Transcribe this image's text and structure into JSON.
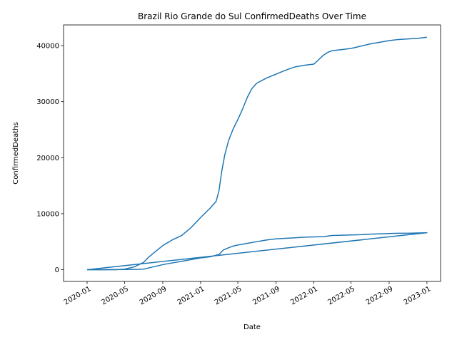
{
  "chart_data": {
    "type": "line",
    "title": "Brazil Rio Grande do Sul ConfirmedDeaths Over Time",
    "xlabel": "Date",
    "ylabel": "ConfirmedDeaths",
    "x_axis_type": "date",
    "xlim": [
      "2019-10-17",
      "2023-02-14"
    ],
    "ylim": [
      -2100,
      43700
    ],
    "x_ticks": [
      "2020-01-01",
      "2020-05-01",
      "2020-09-01",
      "2021-01-01",
      "2021-05-01",
      "2021-09-01",
      "2022-01-01",
      "2022-05-01",
      "2022-09-01",
      "2023-01-01"
    ],
    "x_tick_labels": [
      "2020-01",
      "2020-05",
      "2020-09",
      "2021-01",
      "2021-05",
      "2021-09",
      "2022-01",
      "2022-05",
      "2022-09",
      "2023-01"
    ],
    "y_ticks": [
      0,
      10000,
      20000,
      30000,
      40000
    ],
    "y_tick_labels": [
      "0",
      "10000",
      "20000",
      "30000",
      "40000"
    ],
    "grid": false,
    "line_color": "#1f77b4",
    "series": [
      {
        "points": [
          [
            "2020-01-01",
            0
          ],
          [
            "2020-02-15",
            0
          ],
          [
            "2020-04-01",
            0
          ],
          [
            "2020-05-01",
            100
          ],
          [
            "2020-06-01",
            500
          ],
          [
            "2020-07-01",
            1300
          ],
          [
            "2020-07-15",
            2100
          ],
          [
            "2020-08-01",
            2900
          ],
          [
            "2020-09-01",
            4300
          ],
          [
            "2020-10-01",
            5300
          ],
          [
            "2020-11-01",
            6100
          ],
          [
            "2020-12-01",
            7500
          ],
          [
            "2021-01-01",
            9300
          ],
          [
            "2021-02-01",
            11000
          ],
          [
            "2021-02-20",
            12200
          ],
          [
            "2021-03-01",
            14000
          ],
          [
            "2021-03-10",
            17500
          ],
          [
            "2021-03-20",
            20500
          ],
          [
            "2021-04-01",
            23000
          ],
          [
            "2021-04-15",
            25000
          ],
          [
            "2021-05-01",
            26800
          ],
          [
            "2021-05-15",
            28500
          ],
          [
            "2021-06-01",
            30800
          ],
          [
            "2021-06-15",
            32300
          ],
          [
            "2021-07-01",
            33300
          ],
          [
            "2021-08-01",
            34200
          ],
          [
            "2021-09-01",
            34900
          ],
          [
            "2021-10-01",
            35600
          ],
          [
            "2021-11-01",
            36200
          ],
          [
            "2021-12-01",
            36500
          ],
          [
            "2022-01-01",
            36700
          ],
          [
            "2022-01-15",
            37400
          ],
          [
            "2022-02-01",
            38300
          ],
          [
            "2022-02-15",
            38800
          ],
          [
            "2022-03-01",
            39100
          ],
          [
            "2022-04-01",
            39300
          ],
          [
            "2022-05-01",
            39500
          ],
          [
            "2022-06-01",
            39900
          ],
          [
            "2022-07-01",
            40300
          ],
          [
            "2022-08-01",
            40600
          ],
          [
            "2022-09-01",
            40900
          ],
          [
            "2022-10-01",
            41100
          ],
          [
            "2022-11-01",
            41200
          ],
          [
            "2022-12-01",
            41300
          ],
          [
            "2023-01-01",
            41500
          ]
        ]
      },
      {
        "points": [
          [
            "2020-01-01",
            0
          ],
          [
            "2020-03-01",
            0
          ],
          [
            "2020-06-01",
            50
          ],
          [
            "2020-07-01",
            100
          ],
          [
            "2020-08-01",
            500
          ],
          [
            "2020-09-01",
            900
          ],
          [
            "2020-10-01",
            1200
          ],
          [
            "2020-11-01",
            1500
          ],
          [
            "2020-12-01",
            1800
          ],
          [
            "2021-01-01",
            2100
          ],
          [
            "2021-02-01",
            2300
          ],
          [
            "2021-03-01",
            2700
          ],
          [
            "2021-03-15",
            3500
          ],
          [
            "2021-04-01",
            3900
          ],
          [
            "2021-04-15",
            4200
          ],
          [
            "2021-05-01",
            4400
          ],
          [
            "2021-06-01",
            4700
          ],
          [
            "2021-07-01",
            5000
          ],
          [
            "2021-08-01",
            5300
          ],
          [
            "2021-09-01",
            5500
          ],
          [
            "2021-10-01",
            5600
          ],
          [
            "2021-11-01",
            5700
          ],
          [
            "2021-12-01",
            5800
          ],
          [
            "2022-01-01",
            5850
          ],
          [
            "2022-02-01",
            5900
          ],
          [
            "2022-03-01",
            6100
          ],
          [
            "2022-04-01",
            6150
          ],
          [
            "2022-05-01",
            6200
          ],
          [
            "2022-06-01",
            6250
          ],
          [
            "2022-07-01",
            6350
          ],
          [
            "2022-08-01",
            6400
          ],
          [
            "2022-09-01",
            6450
          ],
          [
            "2022-10-01",
            6500
          ],
          [
            "2022-11-01",
            6500
          ],
          [
            "2022-12-01",
            6550
          ],
          [
            "2023-01-01",
            6600
          ],
          [
            "2020-01-01",
            0
          ]
        ]
      }
    ]
  }
}
